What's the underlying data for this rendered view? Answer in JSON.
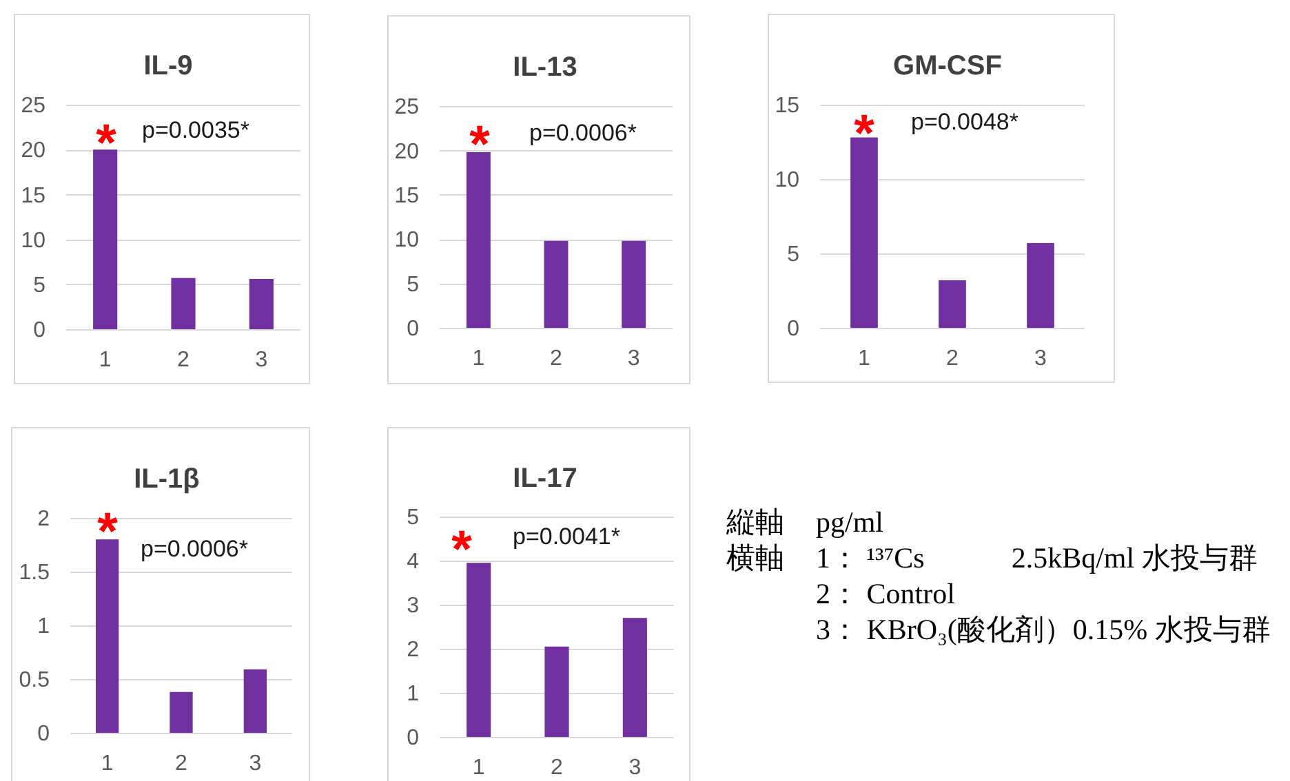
{
  "chart_data": [
    {
      "type": "bar",
      "title": "IL-9",
      "categories": [
        "1",
        "2",
        "3"
      ],
      "values": [
        20,
        5.7,
        5.6
      ],
      "color": "#7030a0",
      "ylim": [
        0,
        25
      ],
      "yticks": [
        0,
        5,
        10,
        15,
        20,
        25
      ],
      "grid": "y",
      "annotations": [
        "*",
        "p=0.0035*"
      ]
    },
    {
      "type": "bar",
      "title": "IL-13",
      "categories": [
        "1",
        "2",
        "3"
      ],
      "values": [
        19.8,
        9.8,
        9.8
      ],
      "color": "#7030a0",
      "ylim": [
        0,
        25
      ],
      "yticks": [
        0,
        5,
        10,
        15,
        20,
        25
      ],
      "grid": "y",
      "annotations": [
        "*",
        "p=0.0006*"
      ]
    },
    {
      "type": "bar",
      "title": "GM-CSF",
      "categories": [
        "1",
        "2",
        "3"
      ],
      "values": [
        12.8,
        3.2,
        5.7
      ],
      "color": "#7030a0",
      "ylim": [
        0,
        15
      ],
      "yticks": [
        0,
        5,
        10,
        15
      ],
      "grid": "y",
      "annotations": [
        "*",
        "p=0.0048*"
      ]
    },
    {
      "type": "bar",
      "title": "IL-1β",
      "categories": [
        "1",
        "2",
        "3"
      ],
      "values": [
        1.8,
        0.38,
        0.59
      ],
      "color": "#7030a0",
      "ylim": [
        0,
        2
      ],
      "yticks": [
        0,
        0.5,
        1,
        1.5,
        2
      ],
      "grid": "y",
      "annotations": [
        "*",
        "p=0.0006*"
      ]
    },
    {
      "type": "bar",
      "title": "IL-17",
      "categories": [
        "1",
        "2",
        "3"
      ],
      "values": [
        3.95,
        2.05,
        2.7
      ],
      "color": "#7030a0",
      "ylim": [
        0,
        5
      ],
      "yticks": [
        0,
        1,
        2,
        3,
        4,
        5
      ],
      "grid": "y",
      "annotations": [
        "*",
        "p=0.0041*"
      ]
    },
    {
      "type": "other",
      "annotations": [
        "縦軸",
        "pg/ml",
        "横軸",
        "1： ¹³⁷Cs　　　2.5kBq/ml 水投与群",
        "2： Control",
        "3： KBrO₃(酸化剤）0.15% 水投与群"
      ]
    }
  ]
}
